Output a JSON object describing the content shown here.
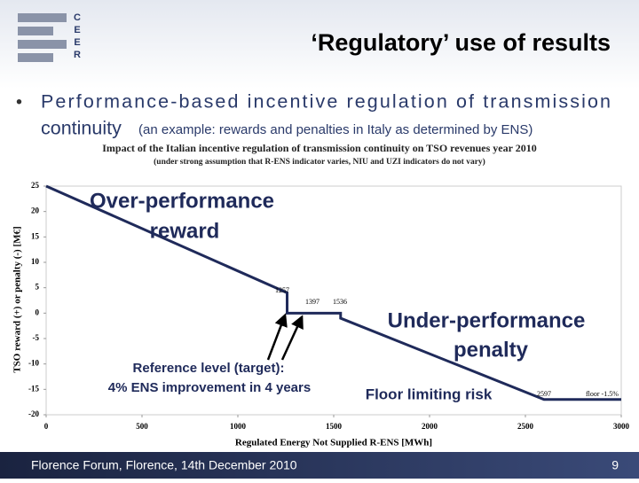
{
  "header": {
    "logo": [
      "C",
      "E",
      "E",
      "R"
    ],
    "title": "‘Regulatory’ use of results"
  },
  "bullet": {
    "line1": "Performance-based incentive regulation of transmission",
    "line2_main": "continuity",
    "line2_note": "(an example: rewards and penalties in Italy as determined by ENS)"
  },
  "chart_data": {
    "type": "line",
    "title": "Impact of the Italian incentive regulation of transmission continuity on TSO revenues year 2010",
    "subtitle": "(under strong assumption that R-ENS indicator varies, NIU and UZI indicators do not vary)",
    "x_label": "Regulated Energy Not Supplied R-ENS [MWh]",
    "y_label": "TSO reward (+) or penalty (-) [M€]",
    "x": [
      0,
      1257,
      1257,
      1397,
      1536,
      1536,
      2597,
      3000
    ],
    "series": [
      {
        "color": "#1f2a5a",
        "values": [
          25,
          4,
          0,
          0,
          0,
          -1,
          -17,
          -17
        ]
      }
    ],
    "xlim": [
      0,
      3000
    ],
    "xticks": [
      0,
      500,
      1000,
      1500,
      2000,
      2500,
      3000
    ],
    "ylim": [
      -20,
      25
    ],
    "yticks": [
      -20,
      -15,
      -10,
      -5,
      0,
      5,
      10,
      15,
      20,
      25
    ],
    "grid": false,
    "point_labels": [
      "1257",
      "1397",
      "1536",
      "2597",
      "floor -1.5%"
    ],
    "annotations": {
      "over": [
        "Over-performance",
        "reward"
      ],
      "under": [
        "Under-performance",
        "penalty"
      ],
      "floor": "Floor limiting risk",
      "reference": [
        "Reference level (target):",
        "4% ENS improvement in 4 years"
      ]
    }
  },
  "footer": {
    "text": "Florence Forum, Florence, 14th December 2010",
    "page": "9"
  }
}
